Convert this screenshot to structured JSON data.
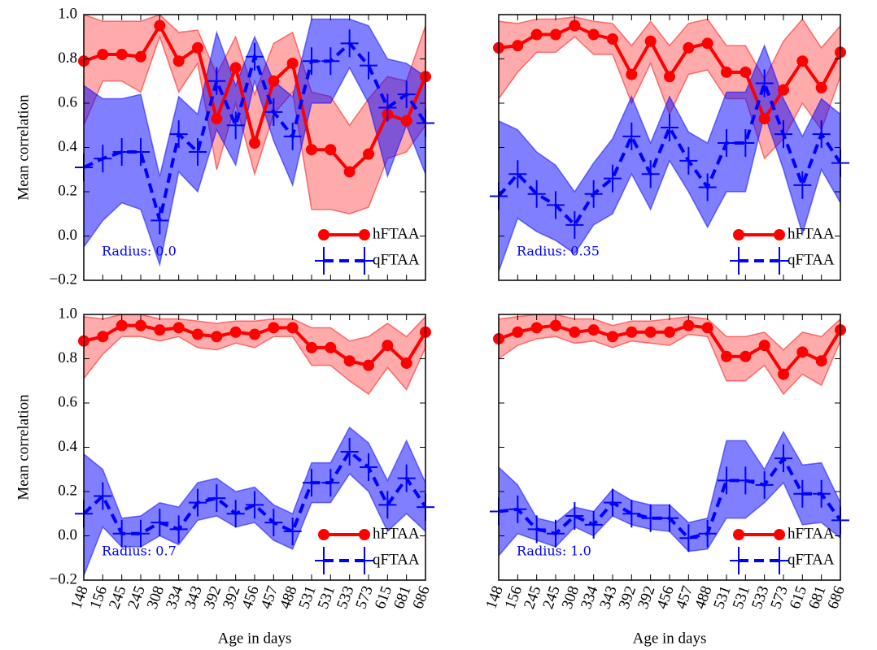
{
  "chart_data": [
    {
      "type": "line",
      "annotation": "Radius: 0.0",
      "ylabel": "Mean correlation",
      "legend": "lower right",
      "categories": [
        null,
        null,
        null,
        null,
        null,
        null,
        null,
        null,
        null,
        null,
        null,
        null,
        null,
        null,
        null,
        null,
        null,
        null,
        null
      ],
      "ylim": [
        -0.2,
        1.0
      ],
      "yticks": [
        {
          "value": -0.2,
          "label": "−0.2"
        },
        {
          "value": 0,
          "label": "0.0"
        },
        {
          "value": 0.2,
          "label": "0.2"
        },
        {
          "value": 0.4,
          "label": "0.4"
        },
        {
          "value": 0.6,
          "label": "0.6"
        },
        {
          "value": 0.8,
          "label": "0.8"
        },
        {
          "value": 1,
          "label": "1.0"
        }
      ],
      "series": [
        {
          "name": "hFTAA",
          "color": "#ff0000",
          "marker": "circle",
          "linestyle": "solid",
          "values": [
            0.79,
            0.82,
            0.82,
            0.81,
            0.95,
            0.79,
            0.85,
            0.53,
            0.76,
            0.42,
            0.7,
            0.78,
            0.39,
            0.39,
            0.29,
            0.37,
            0.55,
            0.52,
            0.72
          ],
          "upper": [
            1.0,
            0.97,
            0.97,
            0.97,
            1.0,
            0.92,
            0.93,
            0.73,
            0.9,
            0.64,
            0.87,
            0.92,
            0.65,
            0.63,
            0.5,
            0.62,
            0.72,
            0.7,
            0.95
          ],
          "lower": [
            0.5,
            0.7,
            0.7,
            0.65,
            0.9,
            0.65,
            0.78,
            0.3,
            0.6,
            0.28,
            0.55,
            0.65,
            0.12,
            0.12,
            0.1,
            0.13,
            0.35,
            0.38,
            0.5
          ]
        },
        {
          "name": "qFTAA",
          "color": "#0000ff",
          "marker": "plus",
          "linestyle": "dashed",
          "values": [
            0.31,
            0.35,
            0.38,
            0.38,
            0.07,
            0.46,
            0.38,
            0.7,
            0.5,
            0.81,
            0.56,
            0.45,
            0.79,
            0.79,
            0.87,
            0.77,
            0.58,
            0.64,
            0.51
          ],
          "upper": [
            0.68,
            0.62,
            0.62,
            0.64,
            0.27,
            0.63,
            0.55,
            0.92,
            0.68,
            0.9,
            0.7,
            0.63,
            0.98,
            0.98,
            0.98,
            0.95,
            0.8,
            0.78,
            0.72
          ],
          "lower": [
            -0.05,
            0.07,
            0.15,
            0.12,
            -0.13,
            0.29,
            0.2,
            0.48,
            0.32,
            0.7,
            0.43,
            0.23,
            0.6,
            0.6,
            0.76,
            0.6,
            0.27,
            0.5,
            0.28
          ]
        }
      ]
    },
    {
      "type": "line",
      "annotation": "Radius: 0.35",
      "legend": "lower right",
      "categories": [
        null,
        null,
        null,
        null,
        null,
        null,
        null,
        null,
        null,
        null,
        null,
        null,
        null,
        null,
        null,
        null,
        null,
        null,
        null
      ],
      "ylim": [
        -0.2,
        1.0
      ],
      "yticks": [
        -0.2,
        0,
        0.2,
        0.4,
        0.6,
        0.8,
        1
      ],
      "series": [
        {
          "name": "hFTAA",
          "color": "#ff0000",
          "marker": "circle",
          "linestyle": "solid",
          "values": [
            0.85,
            0.86,
            0.91,
            0.91,
            0.95,
            0.91,
            0.89,
            0.73,
            0.88,
            0.72,
            0.85,
            0.87,
            0.74,
            0.74,
            0.53,
            0.66,
            0.79,
            0.67,
            0.83
          ],
          "upper": [
            0.97,
            0.96,
            0.98,
            0.98,
            0.99,
            0.97,
            0.96,
            0.86,
            0.97,
            0.86,
            0.96,
            0.98,
            0.86,
            0.86,
            0.71,
            0.88,
            0.98,
            0.85,
            0.95
          ],
          "lower": [
            0.62,
            0.74,
            0.83,
            0.83,
            0.9,
            0.82,
            0.82,
            0.6,
            0.78,
            0.55,
            0.73,
            0.75,
            0.62,
            0.62,
            0.35,
            0.44,
            0.6,
            0.48,
            0.72
          ]
        },
        {
          "name": "qFTAA",
          "color": "#0000ff",
          "marker": "plus",
          "linestyle": "dashed",
          "values": [
            0.18,
            0.28,
            0.19,
            0.14,
            0.05,
            0.19,
            0.26,
            0.45,
            0.28,
            0.49,
            0.34,
            0.22,
            0.42,
            0.42,
            0.69,
            0.46,
            0.23,
            0.46,
            0.33
          ],
          "upper": [
            0.52,
            0.48,
            0.38,
            0.32,
            0.2,
            0.33,
            0.44,
            0.63,
            0.42,
            0.63,
            0.47,
            0.42,
            0.65,
            0.65,
            0.86,
            0.62,
            0.45,
            0.62,
            0.55
          ],
          "lower": [
            -0.16,
            0.08,
            0.02,
            -0.02,
            -0.08,
            0.05,
            0.1,
            0.28,
            0.12,
            0.34,
            0.2,
            0.04,
            0.2,
            0.2,
            0.55,
            0.3,
            0.01,
            0.3,
            0.15
          ]
        }
      ]
    },
    {
      "type": "line",
      "annotation": "Radius: 0.7",
      "ylabel": "Mean correlation",
      "xlabel": "Age in days",
      "legend": "lower right",
      "categories": [
        "148",
        "156",
        "245",
        "245",
        "308",
        "334",
        "343",
        "392",
        "392",
        "456",
        "457",
        "488",
        "531",
        "531",
        "533",
        "573",
        "615",
        "681",
        "686"
      ],
      "ylim": [
        -0.2,
        1.0
      ],
      "yticks": [
        {
          "value": -0.2,
          "label": "−0.2"
        },
        {
          "value": 0,
          "label": "0.0"
        },
        {
          "value": 0.2,
          "label": "0.2"
        },
        {
          "value": 0.4,
          "label": "0.4"
        },
        {
          "value": 0.6,
          "label": "0.6"
        },
        {
          "value": 0.8,
          "label": "0.8"
        },
        {
          "value": 1,
          "label": "1.0"
        }
      ],
      "series": [
        {
          "name": "hFTAA",
          "color": "#ff0000",
          "marker": "circle",
          "linestyle": "solid",
          "values": [
            0.88,
            0.9,
            0.95,
            0.95,
            0.93,
            0.94,
            0.91,
            0.9,
            0.92,
            0.91,
            0.94,
            0.94,
            0.85,
            0.85,
            0.79,
            0.77,
            0.86,
            0.78,
            0.92
          ],
          "upper": [
            0.99,
            0.98,
            1.0,
            1.0,
            0.98,
            0.98,
            0.97,
            0.96,
            0.97,
            0.97,
            0.98,
            0.98,
            0.94,
            0.94,
            0.88,
            0.9,
            0.96,
            0.9,
            0.99
          ],
          "lower": [
            0.71,
            0.82,
            0.9,
            0.9,
            0.88,
            0.9,
            0.85,
            0.84,
            0.87,
            0.85,
            0.9,
            0.9,
            0.77,
            0.77,
            0.7,
            0.64,
            0.76,
            0.66,
            0.85
          ]
        },
        {
          "name": "qFTAA",
          "color": "#0000ff",
          "marker": "plus",
          "linestyle": "dashed",
          "values": [
            0.1,
            0.18,
            0.01,
            0.01,
            0.06,
            0.03,
            0.15,
            0.17,
            0.1,
            0.14,
            0.06,
            0.02,
            0.24,
            0.24,
            0.38,
            0.31,
            0.14,
            0.26,
            0.13
          ],
          "upper": [
            0.37,
            0.3,
            0.08,
            0.09,
            0.15,
            0.13,
            0.24,
            0.26,
            0.2,
            0.22,
            0.14,
            0.1,
            0.33,
            0.33,
            0.49,
            0.42,
            0.25,
            0.43,
            0.24
          ],
          "lower": [
            -0.18,
            0.04,
            -0.05,
            -0.05,
            0.0,
            -0.04,
            0.07,
            0.09,
            0.04,
            0.06,
            -0.02,
            -0.06,
            0.15,
            0.15,
            0.28,
            0.2,
            0.02,
            0.1,
            0.02
          ]
        }
      ]
    },
    {
      "type": "line",
      "annotation": "Radius: 1.0",
      "xlabel": "Age in days",
      "legend": "lower right",
      "categories": [
        "148",
        "156",
        "245",
        "245",
        "308",
        "334",
        "343",
        "392",
        "392",
        "456",
        "457",
        "488",
        "531",
        "531",
        "533",
        "573",
        "615",
        "681",
        "686"
      ],
      "ylim": [
        -0.2,
        1.0
      ],
      "yticks": [
        -0.2,
        0,
        0.2,
        0.4,
        0.6,
        0.8,
        1
      ],
      "series": [
        {
          "name": "hFTAA",
          "color": "#ff0000",
          "marker": "circle",
          "linestyle": "solid",
          "values": [
            0.89,
            0.92,
            0.94,
            0.95,
            0.92,
            0.93,
            0.9,
            0.92,
            0.92,
            0.92,
            0.95,
            0.94,
            0.81,
            0.81,
            0.86,
            0.73,
            0.83,
            0.79,
            0.93
          ],
          "upper": [
            0.98,
            0.99,
            1.0,
            1.0,
            0.98,
            0.98,
            0.95,
            0.97,
            0.97,
            0.98,
            0.99,
            0.98,
            0.9,
            0.9,
            0.92,
            0.84,
            0.92,
            0.9,
            0.98
          ],
          "lower": [
            0.8,
            0.86,
            0.89,
            0.9,
            0.87,
            0.88,
            0.85,
            0.88,
            0.87,
            0.86,
            0.91,
            0.9,
            0.7,
            0.7,
            0.77,
            0.64,
            0.73,
            0.68,
            0.88
          ]
        },
        {
          "name": "qFTAA",
          "color": "#0000ff",
          "marker": "plus",
          "linestyle": "dashed",
          "values": [
            0.11,
            0.12,
            0.03,
            0.01,
            0.09,
            0.05,
            0.15,
            0.1,
            0.08,
            0.08,
            -0.01,
            0.01,
            0.25,
            0.25,
            0.23,
            0.35,
            0.19,
            0.19,
            0.07
          ],
          "upper": [
            0.31,
            0.23,
            0.08,
            0.06,
            0.13,
            0.11,
            0.21,
            0.16,
            0.14,
            0.14,
            0.06,
            0.08,
            0.43,
            0.43,
            0.3,
            0.47,
            0.32,
            0.33,
            0.15
          ],
          "lower": [
            -0.09,
            0.01,
            -0.02,
            -0.05,
            0.04,
            0.0,
            0.09,
            0.05,
            0.03,
            0.02,
            -0.07,
            -0.06,
            0.08,
            0.08,
            0.15,
            0.24,
            0.05,
            0.06,
            -0.01
          ]
        }
      ]
    }
  ]
}
